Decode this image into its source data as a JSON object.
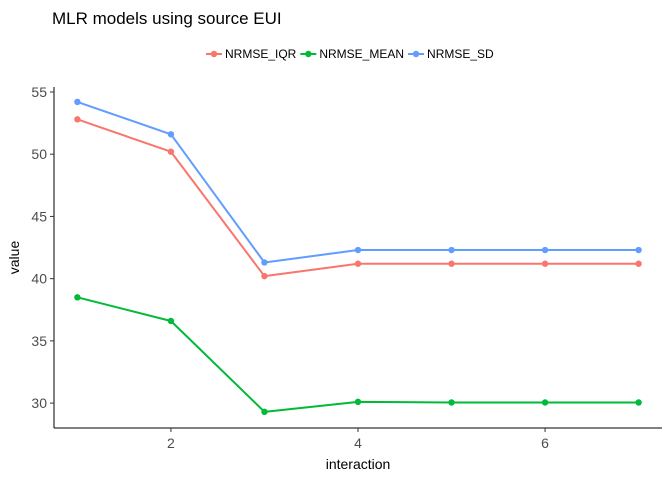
{
  "chart_data": {
    "type": "line",
    "title": "MLR models using source EUI",
    "xlabel": "interaction",
    "ylabel": "value",
    "x": [
      1,
      2,
      3,
      4,
      5,
      6,
      7
    ],
    "xticks": [
      2,
      4,
      6
    ],
    "yticks": [
      30,
      35,
      40,
      45,
      50,
      55
    ],
    "xlim": [
      0.75,
      7.25
    ],
    "ylim": [
      28,
      55.4
    ],
    "grid": false,
    "legend_position": "top",
    "series": [
      {
        "name": "NRMSE_IQR",
        "color": "#F8766D",
        "values": [
          52.8,
          50.2,
          40.2,
          41.2,
          41.2,
          41.2,
          41.2
        ]
      },
      {
        "name": "NRMSE_MEAN",
        "color": "#00BA38",
        "values": [
          38.5,
          36.6,
          29.3,
          30.1,
          30.05,
          30.05,
          30.05
        ]
      },
      {
        "name": "NRMSE_SD",
        "color": "#619CFF",
        "values": [
          54.2,
          51.6,
          41.3,
          42.3,
          42.3,
          42.3,
          42.3
        ]
      }
    ]
  }
}
